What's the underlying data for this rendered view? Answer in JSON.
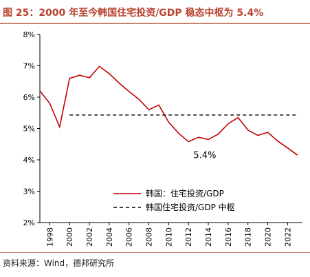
{
  "figure_title": "图 25：2000 年至今韩国住宅投资/GDP 稳态中枢为 5.4%",
  "source_note": "资料来源：Wind，德邦研究所",
  "colors": {
    "series": "#c00000",
    "median": "#000000",
    "accent": "#b8412f"
  },
  "chart_data": {
    "type": "line",
    "title": "",
    "xlabel": "",
    "ylabel": "",
    "x": [
      1997,
      1998,
      1999,
      2000,
      2001,
      2002,
      2003,
      2004,
      2005,
      2006,
      2007,
      2008,
      2009,
      2010,
      2011,
      2012,
      2013,
      2014,
      2015,
      2016,
      2017,
      2018,
      2019,
      2020,
      2021,
      2022,
      2023
    ],
    "series": [
      {
        "name": "韩国：住宅投资/GDP",
        "style": "solid",
        "values": [
          6.2,
          5.8,
          5.05,
          6.6,
          6.7,
          6.62,
          6.98,
          6.75,
          6.45,
          6.18,
          5.93,
          5.6,
          5.75,
          5.2,
          4.85,
          4.58,
          4.72,
          4.65,
          4.82,
          5.15,
          5.35,
          4.95,
          4.78,
          4.88,
          4.6,
          4.38,
          4.15
        ]
      },
      {
        "name": "韩国住宅投资/GDP 中枢",
        "style": "dashed",
        "x_range": [
          2000,
          2023
        ],
        "value": 5.43
      }
    ],
    "annotations": [
      {
        "text": "5.4%",
        "x": 2012.5,
        "y": 4.05
      }
    ],
    "y_ticks": [
      "2%",
      "3%",
      "4%",
      "5%",
      "6%",
      "7%",
      "8%"
    ],
    "x_ticks": [
      "1998",
      "2000",
      "2002",
      "2004",
      "2006",
      "2008",
      "2010",
      "2012",
      "2014",
      "2016",
      "2018",
      "2020",
      "2022"
    ],
    "xlim": [
      1997,
      2023.5
    ],
    "ylim": [
      2,
      8
    ],
    "grid": false,
    "legend": "center-left inside plot"
  }
}
